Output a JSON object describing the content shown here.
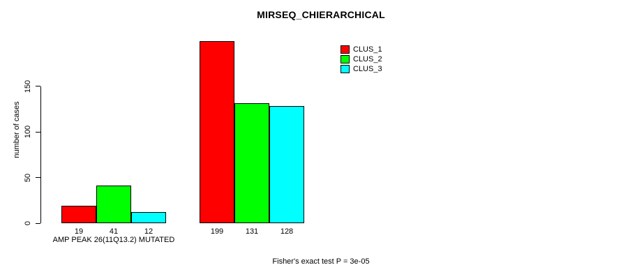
{
  "chart_data": {
    "type": "bar",
    "title": "MIRSEQ_CHIERARCHICAL",
    "ylabel": "number of cases",
    "xlabel": "",
    "yticks": [
      0,
      50,
      100,
      150
    ],
    "ylim": [
      0,
      205
    ],
    "grid": false,
    "legend_position": "top-right",
    "categories": [
      "AMP PEAK 26(11Q13.2) MUTATED",
      ""
    ],
    "series": [
      {
        "name": "CLUS_1",
        "color": "#ff0000",
        "values": [
          19,
          199
        ]
      },
      {
        "name": "CLUS_2",
        "color": "#00ff00",
        "values": [
          41,
          131
        ]
      },
      {
        "name": "CLUS_3",
        "color": "#00ffff",
        "values": [
          12,
          128
        ]
      }
    ],
    "footnote": "Fisher's exact test P = 3e-05"
  }
}
